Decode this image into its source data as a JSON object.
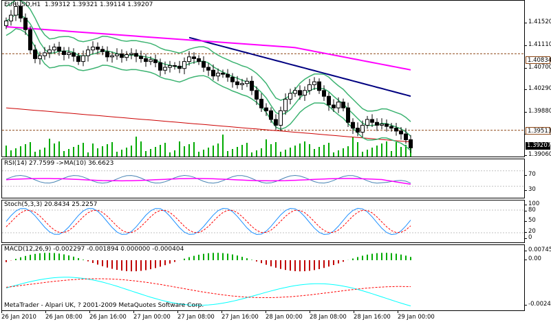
{
  "chart_header": {
    "symbol_tf": "EURUSD,H1",
    "ohlc": "1.39312 1.39321 1.39114 1.39207"
  },
  "indicators": {
    "rsi": "RSI(14) 27.7599 ->MA(10) 36.6623",
    "stoch": "Stoch(5,3,3) 20.8434 25.2257",
    "macd": "MACD(12,26,9) -0.002297 -0.001894 0.000000 -0.000404"
  },
  "price_axis": [
    "1.41520",
    "1.41110",
    "1.40700",
    "1.40290",
    "1.39880",
    "1.39470",
    "1.39060"
  ],
  "price_badges": {
    "upper": "1.40834",
    "mid": "1.39513",
    "current": "1.39207"
  },
  "rsi_axis": [
    "70",
    "30"
  ],
  "stoch_axis": [
    "100",
    "80",
    "50",
    "20",
    "0"
  ],
  "macd_axis": [
    "0.00745",
    "0.00",
    "-0.00244"
  ],
  "time_axis": [
    "26 Jan 2010",
    "26 Jan 08:00",
    "26 Jan 16:00",
    "27 Jan 00:00",
    "27 Jan 08:00",
    "27 Jan 16:00",
    "28 Jan 00:00",
    "28 Jan 08:00",
    "28 Jan 16:00",
    "29 Jan 00:00"
  ],
  "copyright": "MetaTrader - Alpari UK, ? 2001-2009 MetaQuotes Software Corp.",
  "colors": {
    "up_candle": "#ffffff",
    "down_candle": "#000000",
    "ma_blue": "#000080",
    "ma_magenta": "#ff00ff",
    "bands": "#3cb371",
    "ma_red": "#cc0000",
    "volumes": "#00aa00",
    "rsi_line": "#4682b4",
    "rsi_ma": "#ff00ff",
    "stoch_main": "#1e90ff",
    "stoch_signal": "#ff0000",
    "macd_hist_up": "#00aa00",
    "macd_hist_down": "#c00000",
    "macd_line": "#00ffff",
    "macd_signal": "#ff0000",
    "badge_bg": "#000000"
  },
  "chart_data": {
    "type": "candlestick",
    "symbol": "EURUSD",
    "timeframe": "H1",
    "ylim": [
      1.3906,
      1.4175
    ],
    "closes": [
      1.414,
      1.415,
      1.4165,
      1.4145,
      1.4125,
      1.409,
      1.4075,
      1.408,
      1.4085,
      1.409,
      1.4095,
      1.4088,
      1.4082,
      1.4085,
      1.4079,
      1.407,
      1.408,
      1.409,
      1.4095,
      1.4091,
      1.4087,
      1.4078,
      1.408,
      1.4083,
      1.4077,
      1.4082,
      1.4084,
      1.4079,
      1.4075,
      1.407,
      1.4073,
      1.4068,
      1.4055,
      1.406,
      1.4063,
      1.4062,
      1.4058,
      1.407,
      1.4078,
      1.4075,
      1.407,
      1.406,
      1.4055,
      1.4045,
      1.405,
      1.4048,
      1.4043,
      1.4035,
      1.403,
      1.4032,
      1.4036,
      1.402,
      1.4005,
      1.399,
      1.3985,
      1.397,
      1.396,
      1.3985,
      1.4005,
      1.4015,
      1.402,
      1.4012,
      1.402,
      1.403,
      1.4035,
      1.402,
      1.401,
      1.3995,
      1.399,
      1.4,
      1.399,
      1.3965,
      1.3955,
      1.3948,
      1.396,
      1.397,
      1.3965,
      1.396,
      1.3962,
      1.3958,
      1.3955,
      1.395,
      1.3945,
      1.3935,
      1.3921
    ],
    "support_levels": [
      1.40834,
      1.39513
    ]
  }
}
